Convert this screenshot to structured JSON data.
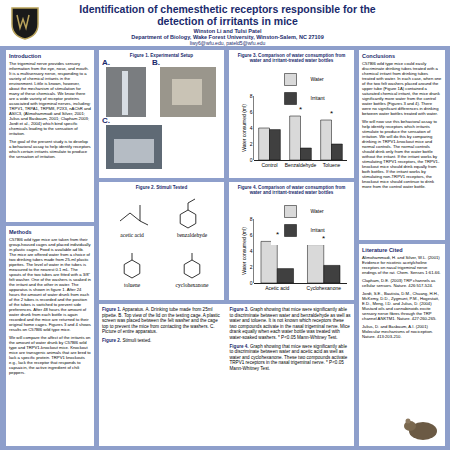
{
  "header": {
    "title": "Identification of chemesthetic receptors responsible for the detection of irritants in mice",
    "authors": "Winston Li and Tulsi Patel",
    "department": "Department of Biology, Wake Forest University, Winston-Salem, NC  27109",
    "emails": "liwy6@wfu.edu, pateld5@wfu.edu"
  },
  "introduction": {
    "heading": "Introduction",
    "paragraphs": [
      "The trigeminal nerve provides sensory information from the eye, nose, and mouth.  It is a multisensory nerve, responding to a variety of chemical irritants in the environment.  Little is known, however, about the mechanism of stimulation for many of these chemicals. We know there are a wide variety of receptor proteins associated with trigeminal nerves, including: TRPV1, TRPA1, TRPM8, P2X3, nAChR and ASIC3, (Alimohammadi and Silver, 2001; Julius and Basbaum, 2001; Clapham 2003; Jordt et al., 2004) which bind specific chemicals leading to the sensation of irritation.",
      "The goal of the present study is to develop a behavioral assay to help identify receptors which certain irritants stimulate to produce the sensation of irritation."
    ]
  },
  "methods": {
    "heading": "Methods",
    "paragraphs": [
      "C57Bl6 wild type mice are taken from their group-housed cages and placed individually in plastic cages. Food is available ad lib. The mice are offered water from a choice of two drinking tubes made from 25-ml plastic pipettes. The level of water in the tubes is measured to the nearest 0.1 mL. The spouts of the two tubes are fitted with a 3/8\" felt washer. One of the washers is soaked in the irritant and the other in water. The apparatus is shown in figure 1. After 24 hours the amount of water drunk from each of the 2 tubes is recorded and the position of the tubes is switched to prevent side preferences. After 48 hours the amount of water drunk from each bottle is again recorded and the mice are returned to their original home cages. Figures 3 and 4 shows results on C57Bl6 wild type mice.",
      "We will compare the affect of the irritants on the amount of water drunk by C57Bl6 wild type and TRPV1-knockout mice. Knockout mice are transgenic animals that are bred to lack a specific protein. TRPV1 knockouts e.g., lack the receptor that responds to capsaicin, the active ingredient of chili peppers."
    ]
  },
  "figure1": {
    "title": "Figure 1. Experimental Setup",
    "panels": [
      "A.",
      "B.",
      "C."
    ]
  },
  "figure2": {
    "title": "Figure 2. Stimuli Tested",
    "stimuli": [
      "acetic acid",
      "benzaldehyde",
      "toluene",
      "cyclohexanone"
    ]
  },
  "chart_data": [
    {
      "type": "bar",
      "title": "Figure 3.  Comparison of water consumption from water and irritant-treated water bottles",
      "ylabel": "Water consumed (ml)",
      "categories": [
        "Control",
        "Benzaldehyde",
        "Toluene"
      ],
      "series": [
        {
          "name": "Water",
          "color": "#d9d9d9",
          "values": [
            4.0,
            5.5,
            5.0
          ]
        },
        {
          "name": "Irritant",
          "color": "#404040",
          "values": [
            3.8,
            1.5,
            2.0
          ]
        }
      ],
      "ylim": [
        0,
        8
      ],
      "yticks": [
        0,
        2,
        4,
        6,
        8
      ],
      "legend": "top",
      "annotations": [
        {
          "category": "Benzaldehyde",
          "text": "*"
        },
        {
          "category": "Toluene",
          "text": "*"
        }
      ]
    },
    {
      "type": "bar",
      "title": "Figure 4. Comparison of water consumption from water and irritant-treated water bottles",
      "ylabel": "Water consumed (ml)",
      "categories": [
        "Acetic acid",
        "Cyclohexanone"
      ],
      "series": [
        {
          "name": "Water",
          "color": "#d9d9d9",
          "values": [
            5.2,
            4.8
          ]
        },
        {
          "name": "Irritant",
          "color": "#404040",
          "values": [
            1.8,
            2.2
          ]
        }
      ],
      "ylim": [
        0,
        8
      ],
      "yticks": [
        0,
        2,
        4,
        6,
        8
      ],
      "legend": "top",
      "annotations": [
        {
          "category": "Acetic acid",
          "text": "*"
        },
        {
          "category": "Cyclohexanone",
          "text": "*"
        }
      ]
    }
  ],
  "captions": [
    {
      "label": "Figure 1.",
      "text": "Apparatus. A. Drinking tube made from 25ml pipette. B. Top view of the lid on the testing cage.  A plastic screen was placed between the felt washer and the cage top to prevent the mice from contacting the washers. C. Picture of entire apparatus."
    },
    {
      "label": "Figure 2.",
      "text": "Stimuli tested."
    },
    {
      "label": "Figure 3.",
      "text": "Graph showing that mice were significantly able to discriminate between water and benzaldehyde as well as water and toluene. It is not known which receptors these two compounds activate in the nasal trigeminal nerve. Mice drank equally when each water bottle was treated with water-soaked washers.  * P<0.05 Mann-Whitney Test."
    },
    {
      "label": "Figure 4.",
      "text": "Graph showing that mice were significantly able to discriminate between water and acetic acid as well as water and cyclohexanone. These two compounds activate TRPV1 receptors in the nasal trigeminal nerve.  * P<0.05 Mann-Whitney Test."
    }
  ],
  "conclusions": {
    "heading": "Conclusions",
    "paragraphs": [
      "C57Bl6 wild type mice could easily discriminate drinking tubes treated with a chemical irritant from drinking tubes treated with water. In each case, when one of the two felt washers placed around the upper tube (Figure 1A) contained a saturated chemical irritant, the mice drank significantly more water from the control water bottles (Figures 3 and 4). There were no significant differences in drinking between water bottles treated with water.",
      "We will now use this behavioral assay to help identify receptors which irritants stimulate to produce the sensation of irritation. We will do this by comparing drinking in TRPV1-knockout mice and normal controls. The normal controls should drink only from the water bottle without the irritant. If the irritant works by stimulating TRPV1 receptors, the TRPV1-knockout mice should drink equally from both bottles. If the irritant works by stimulating non-TRPV1 receptors, the knockout mice should continue to drink more from the control water bottle."
    ]
  },
  "literature": {
    "heading": "Literature Cited",
    "references": [
      "Alimohammadi, H. and Silver, W.L. (2001) Evidence for nicotinic acetylcholine receptors on nasal trigeminal nerve endings of the rat. Chem. Senses 1:61-66.",
      "Clapham, D.E. (2003) TRP channels as cellular sensors. Nature. 426:517-524.",
      "Jordt, S.E., Bautista, D.M., Chuang, H.H., McKemy, D.D., Zygmunt, P.M., Hogestatt, E.D., Meng, I.D. and Julius, D. (2004) Mustard oils and cannabinoids excite sensory nerve fibres through the TRP channel ANKTM1. Nature. 427:260-265.",
      "Julius, D. and Basbaum, A.I. (2001) Molecular mechanisms of nociception. Nature. 413:203-210."
    ]
  }
}
